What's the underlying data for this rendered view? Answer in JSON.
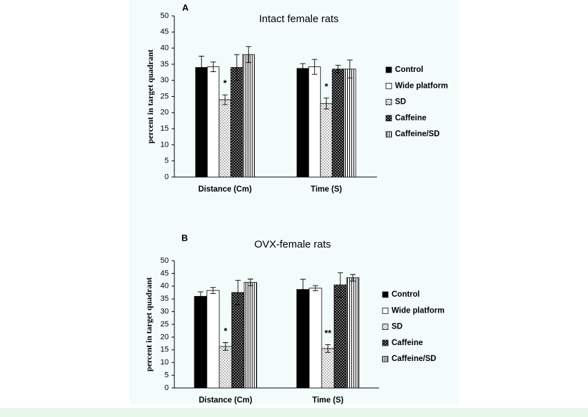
{
  "chart_data": [
    {
      "type": "bar",
      "label": "A",
      "title": "Intact female rats",
      "ylabel": "percent in target quadrant",
      "categories": [
        "Distance (Cm)",
        "Time (S)"
      ],
      "ylim": [
        0,
        50
      ],
      "yticks": [
        0,
        5,
        10,
        15,
        20,
        25,
        30,
        35,
        40,
        45,
        50
      ],
      "series": [
        {
          "name": "Control",
          "color": "#000000",
          "pattern": "solid",
          "values": [
            34,
            33.7
          ],
          "errors": [
            3.5,
            1.5
          ]
        },
        {
          "name": "Wide platform",
          "color": "#ffffff",
          "pattern": "solid",
          "values": [
            34.2,
            34.2
          ],
          "errors": [
            1.5,
            2.3
          ]
        },
        {
          "name": "SD",
          "color": "#ffffff",
          "pattern": "dots",
          "values": [
            24,
            22.8
          ],
          "errors": [
            1.5,
            1.7
          ]
        },
        {
          "name": "Caffeine",
          "color": "#000000",
          "pattern": "dots",
          "values": [
            34,
            33.5
          ],
          "errors": [
            4,
            1.2
          ]
        },
        {
          "name": "Caffeine/SD",
          "color": "#ffffff",
          "pattern": "vstripes",
          "values": [
            38,
            33.5
          ],
          "errors": [
            2.5,
            2.8
          ]
        }
      ],
      "annotations": [
        "*",
        "*"
      ]
    },
    {
      "type": "bar",
      "label": "B",
      "title": "OVX-female rats",
      "ylabel": "percent in target quadrant",
      "categories": [
        "Distance (Cm)",
        "Time (S)"
      ],
      "ylim": [
        0,
        50
      ],
      "yticks": [
        0,
        5,
        10,
        15,
        20,
        25,
        30,
        35,
        40,
        45,
        50
      ],
      "series": [
        {
          "name": "Control",
          "color": "#000000",
          "pattern": "solid",
          "values": [
            36,
            38.7
          ],
          "errors": [
            1.8,
            4
          ]
        },
        {
          "name": "Wide platform",
          "color": "#ffffff",
          "pattern": "solid",
          "values": [
            38.3,
            39.2
          ],
          "errors": [
            1.2,
            1
          ]
        },
        {
          "name": "SD",
          "color": "#ffffff",
          "pattern": "dots",
          "values": [
            16.3,
            15.5
          ],
          "errors": [
            1.5,
            1.5
          ]
        },
        {
          "name": "Caffeine",
          "color": "#000000",
          "pattern": "dots",
          "values": [
            37.5,
            40.5
          ],
          "errors": [
            4.8,
            4.8
          ]
        },
        {
          "name": "Caffeine/SD",
          "color": "#ffffff",
          "pattern": "vstripes",
          "values": [
            41.5,
            43.3
          ],
          "errors": [
            1.3,
            1.3
          ]
        }
      ],
      "annotations": [
        "*",
        "**"
      ]
    }
  ]
}
